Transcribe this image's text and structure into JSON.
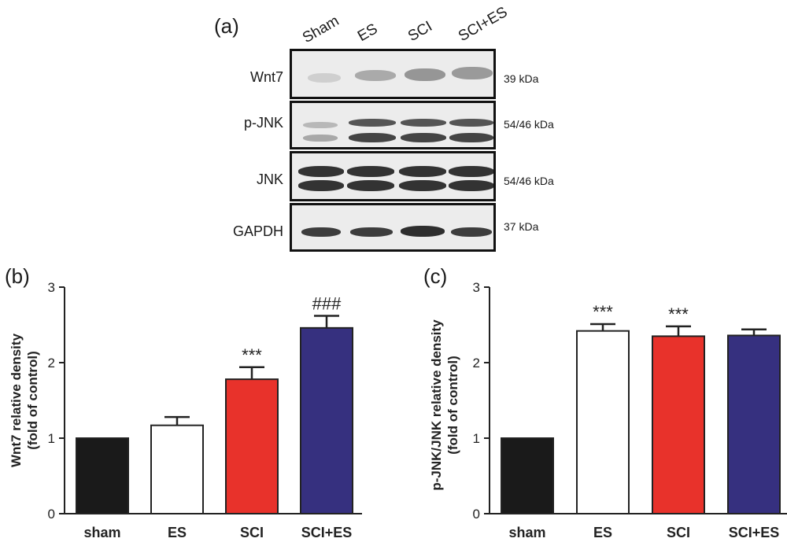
{
  "panels": {
    "a": "(a)",
    "b": "(b)",
    "c": "(c)"
  },
  "blot": {
    "lanes": [
      "Sham",
      "ES",
      "SCI",
      "SCI+ES"
    ],
    "rows": [
      {
        "name": "Wnt7",
        "size": "39 kDa"
      },
      {
        "name": "p-JNK",
        "size": "54/46 kDa"
      },
      {
        "name": "JNK",
        "size": "54/46 kDa"
      },
      {
        "name": "GAPDH",
        "size": "37 kDa"
      }
    ]
  },
  "chart_data": [
    {
      "type": "bar",
      "panel": "(b)",
      "categories": [
        "sham",
        "ES",
        "SCI",
        "SCI+ES"
      ],
      "values": [
        1.0,
        1.17,
        1.78,
        2.46
      ],
      "errors": [
        0.0,
        0.11,
        0.16,
        0.16
      ],
      "annotations": [
        "",
        "",
        "***",
        "###"
      ],
      "colors": [
        "#1a1a1a",
        "#ffffff",
        "#e8322b",
        "#36307f"
      ],
      "ylabel": "Wnt7 relative density\n(fold of control)",
      "yticks": [
        "0",
        "1",
        "2",
        "3"
      ],
      "ylim": [
        0,
        3
      ]
    },
    {
      "type": "bar",
      "panel": "(c)",
      "categories": [
        "sham",
        "ES",
        "SCI",
        "SCI+ES"
      ],
      "values": [
        1.0,
        2.42,
        2.35,
        2.36
      ],
      "errors": [
        0.0,
        0.09,
        0.13,
        0.08
      ],
      "annotations": [
        "",
        "***",
        "***",
        ""
      ],
      "colors": [
        "#1a1a1a",
        "#ffffff",
        "#e8322b",
        "#36307f"
      ],
      "ylabel": "p-JNK/JNK relative density\n(fold of control)",
      "yticks": [
        "0",
        "1",
        "2",
        "3"
      ],
      "ylim": [
        0,
        3
      ]
    }
  ]
}
